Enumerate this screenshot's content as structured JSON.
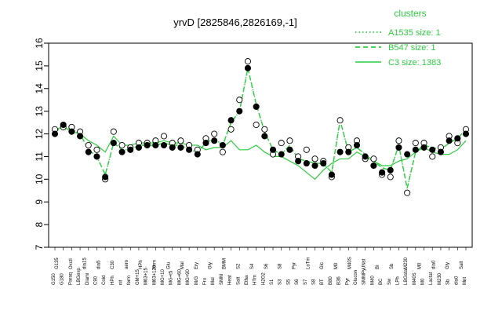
{
  "chart_data": {
    "type": "line",
    "title": "yrvD [2825846,2826169,-1]",
    "xlabel": "",
    "ylabel": "",
    "ylim": [
      7,
      16
    ],
    "yticks": [
      7,
      8,
      9,
      10,
      11,
      12,
      13,
      14,
      15,
      16
    ],
    "grid": false,
    "legend": {
      "title": "clusters",
      "placement": "top-right",
      "entries": [
        {
          "label": "A1535 size: 1",
          "style": "dotted",
          "color": "#2ecc40"
        },
        {
          "label": "B547 size: 1",
          "style": "dashed",
          "color": "#2ecc40"
        },
        {
          "label": "C3 size: 1383",
          "style": "solid",
          "color": "#2ecc40"
        }
      ]
    },
    "categories": [
      "G150",
      "G180",
      "Paraq",
      "LBGexp",
      "Diami",
      "C90",
      "Cold",
      "HPh",
      "nit",
      "ferm",
      "GM+15",
      "M63+15",
      "M63+120",
      "MG+10",
      "MG+t5",
      "MG+60",
      "MG+90",
      "M/G",
      "Fru",
      "Mal",
      "SMM",
      "Heat",
      "Salt",
      "Etha",
      "HTm",
      "H2O2",
      "S1",
      "S3",
      "S5",
      "S6",
      "S7",
      "S8",
      "BT",
      "B80",
      "B36",
      "Pyr",
      "Glucon",
      "SMMPy",
      "M40",
      "BC",
      "LPh",
      "LBGstat",
      "M40S",
      "M0",
      "Lactat",
      "M230",
      "M250",
      "Sb",
      "dia0",
      "Mnt"
    ],
    "x_labels_row1": [
      "G150",
      "G180",
      "Paraq",
      "LBGexp",
      "Diami",
      "C90",
      "Cold",
      "HPh",
      "nit",
      "ferm",
      "GM+15",
      "M63+15",
      "M63+120",
      "MG+10",
      "MG+t5",
      "MG+60",
      "MG+90",
      "M/G",
      "Fru",
      "Mal",
      "SMM",
      "Heat",
      "Salt",
      "Etha",
      "HTm",
      "H2O2",
      "S1",
      "S3",
      "S5",
      "S6",
      "S7",
      "S8",
      "BT",
      "B80",
      "B36",
      "Pyr",
      "Glucon",
      "SMMPy",
      "M40",
      "BC",
      "Sw",
      "LPh",
      "LBGstat",
      "M40S",
      "M0",
      "Lactat",
      "M230",
      "Sb",
      "dia0",
      "Mnt"
    ],
    "x_labels_row2": [
      "G135",
      "Oxctl",
      "dia15",
      "dia5",
      "C30",
      "aero",
      "HPh",
      "ferm",
      "Glu",
      "Mal",
      "Ery",
      "Gly",
      "BMM",
      "S2",
      "S4",
      "S6",
      "S8",
      "Pyr",
      "LoTm",
      "Glc",
      "M0",
      "M40S",
      "UNst",
      "BI",
      "Sb",
      "M230",
      "M0",
      "dia0",
      "Gly",
      "Salt"
    ],
    "series": [
      {
        "name": "C3 size: 1383",
        "style": "solid",
        "color": "#2ecc40",
        "values": [
          12.2,
          12.3,
          12.1,
          12.0,
          11.7,
          11.5,
          11.2,
          11.9,
          11.5,
          11.5,
          11.6,
          11.6,
          11.6,
          11.7,
          11.6,
          11.6,
          11.5,
          11.5,
          11.3,
          11.4,
          11.4,
          11.7,
          11.3,
          11.3,
          11.5,
          11.2,
          11.0,
          11.0,
          10.8,
          10.6,
          10.3,
          10.0,
          10.4,
          10.7,
          10.9,
          10.9,
          11.2,
          11.0,
          10.8,
          10.6,
          10.6,
          10.8,
          10.9,
          11.2,
          11.4,
          11.2,
          11.1,
          11.1,
          11.3,
          11.7
        ]
      },
      {
        "name": "B547 size: 1",
        "style": "dashed",
        "color": "#2ecc40",
        "values": [
          12.1,
          12.3,
          12.2,
          12.0,
          11.3,
          11.0,
          10.2,
          11.6,
          11.3,
          11.3,
          11.5,
          11.5,
          11.5,
          11.6,
          11.5,
          11.5,
          11.3,
          11.2,
          11.6,
          11.8,
          11.5,
          12.5,
          13.0,
          14.9,
          13.3,
          12.1,
          11.3,
          11.1,
          11.5,
          10.9,
          10.8,
          10.7,
          10.7,
          10.3,
          12.6,
          11.2,
          11.4,
          11.1,
          10.8,
          10.5,
          10.4,
          11.5,
          9.6,
          11.2,
          11.5,
          11.4,
          11.3,
          11.6,
          11.8,
          12.2
        ]
      },
      {
        "name": "A1535 size: 1",
        "style": "dotted",
        "color": "#2ecc40",
        "values": [
          12.1,
          12.3,
          12.2,
          12.0,
          11.3,
          11.0,
          10.2,
          11.6,
          11.3,
          11.3,
          11.5,
          11.5,
          11.5,
          11.6,
          11.5,
          11.5,
          11.3,
          11.2,
          11.6,
          11.8,
          11.5,
          12.5,
          13.0,
          14.9,
          13.3,
          12.1,
          11.3,
          11.1,
          11.5,
          10.9,
          10.8,
          10.7,
          10.7,
          10.3,
          12.6,
          11.2,
          11.4,
          11.1,
          10.8,
          10.5,
          10.4,
          11.5,
          9.6,
          11.2,
          11.5,
          11.4,
          11.3,
          11.6,
          11.8,
          12.2
        ]
      }
    ],
    "points": {
      "filled": [
        [
          0,
          12.0
        ],
        [
          1,
          12.4
        ],
        [
          2,
          12.1
        ],
        [
          3,
          11.9
        ],
        [
          4,
          11.2
        ],
        [
          5,
          11.0
        ],
        [
          6,
          10.1
        ],
        [
          7,
          11.6
        ],
        [
          8,
          11.2
        ],
        [
          9,
          11.3
        ],
        [
          10,
          11.4
        ],
        [
          11,
          11.5
        ],
        [
          12,
          11.5
        ],
        [
          13,
          11.5
        ],
        [
          14,
          11.4
        ],
        [
          15,
          11.4
        ],
        [
          16,
          11.3
        ],
        [
          17,
          11.1
        ],
        [
          18,
          11.6
        ],
        [
          19,
          11.7
        ],
        [
          20,
          11.5
        ],
        [
          21,
          12.6
        ],
        [
          22,
          13.0
        ],
        [
          23,
          14.9
        ],
        [
          24,
          13.2
        ],
        [
          25,
          11.9
        ],
        [
          26,
          11.3
        ],
        [
          27,
          11.1
        ],
        [
          28,
          11.3
        ],
        [
          29,
          10.8
        ],
        [
          30,
          10.7
        ],
        [
          31,
          10.6
        ],
        [
          32,
          10.7
        ],
        [
          33,
          10.2
        ],
        [
          34,
          11.2
        ],
        [
          35,
          11.2
        ],
        [
          36,
          11.5
        ],
        [
          37,
          11.0
        ],
        [
          38,
          10.6
        ],
        [
          39,
          10.3
        ],
        [
          40,
          10.4
        ],
        [
          41,
          11.4
        ],
        [
          42,
          11.1
        ],
        [
          43,
          11.3
        ],
        [
          44,
          11.4
        ],
        [
          45,
          11.3
        ],
        [
          46,
          11.2
        ],
        [
          47,
          11.7
        ],
        [
          48,
          11.8
        ],
        [
          49,
          12.0
        ]
      ],
      "open": [
        [
          0,
          12.2
        ],
        [
          1,
          12.3
        ],
        [
          2,
          12.3
        ],
        [
          3,
          12.1
        ],
        [
          4,
          11.5
        ],
        [
          5,
          11.3
        ],
        [
          6,
          10.0
        ],
        [
          7,
          12.1
        ],
        [
          8,
          11.5
        ],
        [
          9,
          11.4
        ],
        [
          10,
          11.6
        ],
        [
          11,
          11.6
        ],
        [
          12,
          11.7
        ],
        [
          13,
          11.9
        ],
        [
          14,
          11.6
        ],
        [
          15,
          11.7
        ],
        [
          16,
          11.5
        ],
        [
          17,
          11.3
        ],
        [
          18,
          11.8
        ],
        [
          19,
          12.0
        ],
        [
          20,
          11.2
        ],
        [
          21,
          12.2
        ],
        [
          22,
          13.5
        ],
        [
          23,
          15.2
        ],
        [
          24,
          12.4
        ],
        [
          25,
          12.2
        ],
        [
          26,
          11.1
        ],
        [
          27,
          11.6
        ],
        [
          28,
          11.7
        ],
        [
          29,
          11.0
        ],
        [
          30,
          11.3
        ],
        [
          31,
          10.9
        ],
        [
          32,
          10.8
        ],
        [
          33,
          10.1
        ],
        [
          34,
          12.6
        ],
        [
          35,
          11.4
        ],
        [
          36,
          11.7
        ],
        [
          37,
          10.9
        ],
        [
          38,
          10.9
        ],
        [
          39,
          10.2
        ],
        [
          40,
          10.1
        ],
        [
          41,
          11.7
        ],
        [
          42,
          9.4
        ],
        [
          43,
          11.6
        ],
        [
          44,
          11.6
        ],
        [
          45,
          11.0
        ],
        [
          46,
          11.4
        ],
        [
          47,
          11.9
        ],
        [
          48,
          11.6
        ],
        [
          49,
          12.2
        ]
      ]
    }
  }
}
